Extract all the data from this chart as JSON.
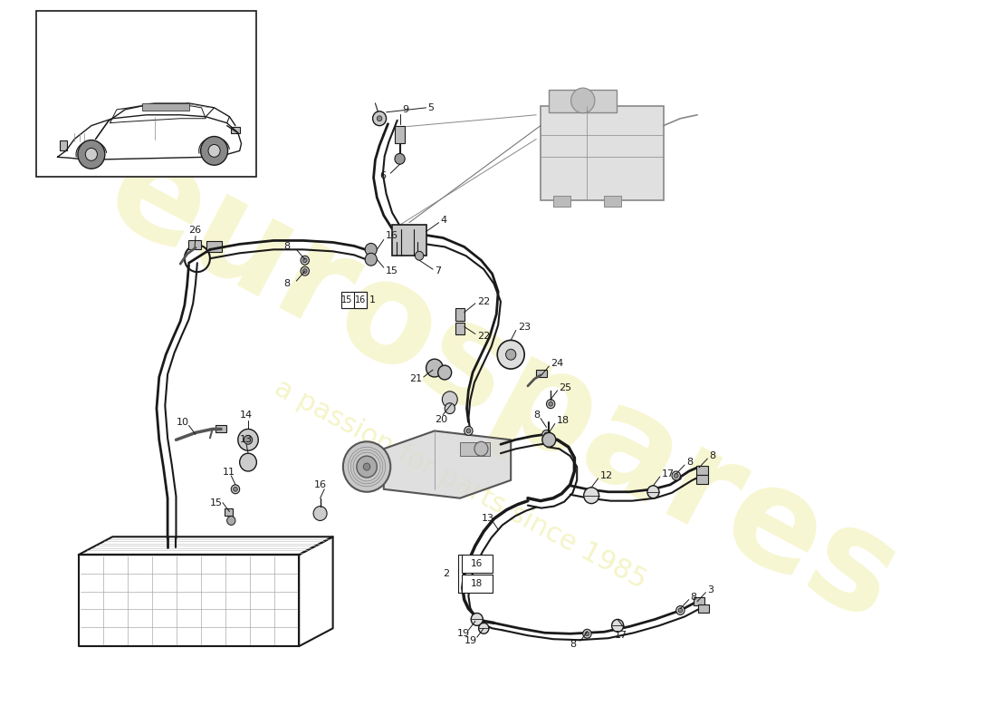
{
  "bg_color": "#ffffff",
  "line_color": "#1a1a1a",
  "watermark_text": "eurospares",
  "watermark_subtext": "a passion for parts since 1985",
  "watermark_color": "#d4cc00",
  "fig_w": 11.0,
  "fig_h": 8.0,
  "dpi": 100
}
